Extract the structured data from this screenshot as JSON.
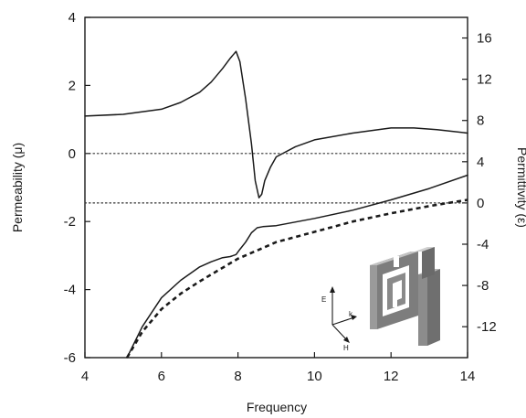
{
  "chart_data": {
    "type": "line",
    "xlabel": "Frequency",
    "ylabel": "Permeability (μ)",
    "y2label": "Permittivity (ε)",
    "xlim": [
      4,
      14
    ],
    "ylim": [
      -6,
      4
    ],
    "y2lim": [
      -15,
      18
    ],
    "xticks": [
      4,
      6,
      8,
      10,
      12,
      14
    ],
    "yticks": [
      -6,
      -4,
      -2,
      0,
      2,
      4
    ],
    "y2ticks": [
      -12,
      -8,
      -4,
      0,
      4,
      8,
      12,
      16
    ],
    "grid": false,
    "series": [
      {
        "axis": "left",
        "style": "solid",
        "x": [
          4.0,
          5.0,
          6.0,
          6.5,
          7.0,
          7.3,
          7.6,
          7.8,
          7.95,
          8.05,
          8.2,
          8.35,
          8.45,
          8.55,
          8.62,
          8.7,
          8.85,
          9.0,
          9.5,
          10.0,
          11.0,
          12.0,
          12.6,
          13.2,
          14.0
        ],
        "y": [
          1.1,
          1.15,
          1.3,
          1.5,
          1.8,
          2.1,
          2.5,
          2.8,
          3.0,
          2.7,
          1.6,
          0.3,
          -0.8,
          -1.3,
          -1.2,
          -0.8,
          -0.4,
          -0.1,
          0.2,
          0.4,
          0.6,
          0.75,
          0.75,
          0.7,
          0.6
        ]
      },
      {
        "axis": "left",
        "style": "dotted",
        "x": [
          4,
          14
        ],
        "y": [
          0,
          0
        ]
      },
      {
        "axis": "right",
        "style": "dotted",
        "x": [
          4,
          14
        ],
        "y": [
          0,
          0
        ]
      },
      {
        "axis": "right",
        "style": "solid",
        "x": [
          5.1,
          5.5,
          6.0,
          6.5,
          7.0,
          7.3,
          7.6,
          7.8,
          7.95,
          8.05,
          8.2,
          8.35,
          8.5,
          8.65,
          9.0,
          10.0,
          11.0,
          12.0,
          13.0,
          14.0
        ],
        "y": [
          -15.0,
          -12.0,
          -9.2,
          -7.5,
          -6.2,
          -5.7,
          -5.3,
          -5.2,
          -5.0,
          -4.5,
          -3.8,
          -2.9,
          -2.4,
          -2.3,
          -2.2,
          -1.5,
          -0.7,
          0.3,
          1.4,
          2.7
        ]
      },
      {
        "axis": "right",
        "style": "dashed",
        "x": [
          5.1,
          5.5,
          6.0,
          6.5,
          7.0,
          7.5,
          8.0,
          8.5,
          9.0,
          9.5,
          10.0,
          11.0,
          12.0,
          13.0,
          14.0
        ],
        "y": [
          -15.0,
          -12.5,
          -10.3,
          -8.8,
          -7.6,
          -6.5,
          -5.4,
          -4.6,
          -3.8,
          -3.3,
          -2.8,
          -1.8,
          -1.0,
          -0.3,
          0.3
        ]
      }
    ],
    "inset": {
      "description_icon": "split-ring-resonator-icon",
      "vector_labels": [
        "E",
        "k",
        "H"
      ]
    }
  }
}
